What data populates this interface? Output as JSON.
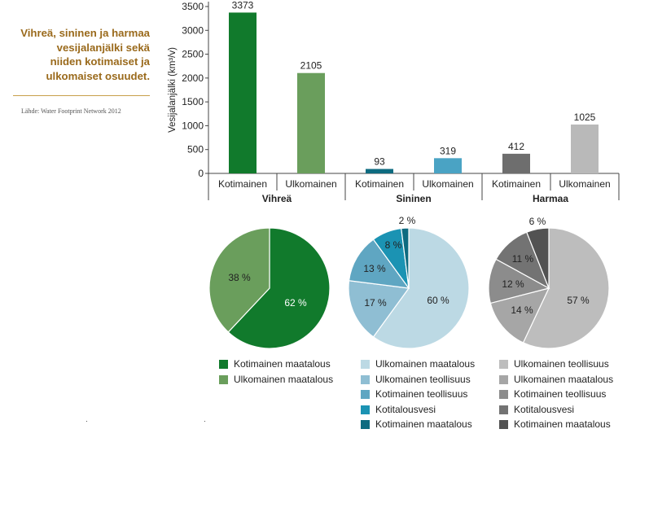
{
  "side_title": {
    "lines": [
      "Vihreä, sininen ja harmaa",
      "vesijalanjälki sekä",
      "niiden kotimaiset ja",
      "ulkomaiset osuudet."
    ]
  },
  "source": "Lähde: Water Footprint Network 2012",
  "chart_data": [
    {
      "type": "bar",
      "ylabel": "Vesijalanjälki (km³/v)",
      "ylim": [
        0,
        3500
      ],
      "yticks": [
        0,
        500,
        1000,
        1500,
        2000,
        2500,
        3000,
        3500
      ],
      "groups": [
        "Vihreä",
        "Sininen",
        "Harmaa"
      ],
      "categories": [
        "Kotimainen",
        "Ulkomainen",
        "Kotimainen",
        "Ulkomainen",
        "Kotimainen",
        "Ulkomainen"
      ],
      "values": [
        3373,
        2105,
        93,
        319,
        412,
        1025
      ],
      "colors": [
        "#117a2c",
        "#6a9e5c",
        "#0e6b80",
        "#4aa3c4",
        "#6e6e6e",
        "#b9b9b9"
      ]
    },
    {
      "type": "pie",
      "slices": [
        {
          "label": "62 %",
          "value": 62,
          "color": "#117a2c",
          "legend": "Kotimainen maatalous"
        },
        {
          "label": "38 %",
          "value": 38,
          "color": "#6a9e5c",
          "legend": "Ulkomainen maatalous"
        }
      ]
    },
    {
      "type": "pie",
      "slices": [
        {
          "label": "60 %",
          "value": 60,
          "color": "#bcd9e4",
          "legend": "Ulkomainen maatalous"
        },
        {
          "label": "17 %",
          "value": 17,
          "color": "#8fbed3",
          "legend": "Ulkomainen teollisuus"
        },
        {
          "label": "13 %",
          "value": 13,
          "color": "#5fa6c2",
          "legend": "Kotimainen teollisuus"
        },
        {
          "label": "8 %",
          "value": 8,
          "color": "#1b93b3",
          "legend": "Kotitalousvesi"
        },
        {
          "label": "2 %",
          "value": 2,
          "color": "#0e6b80",
          "legend": "Kotimainen maatalous"
        }
      ]
    },
    {
      "type": "pie",
      "slices": [
        {
          "label": "57 %",
          "value": 57,
          "color": "#bdbdbd",
          "legend": "Ulkomainen teollisuus"
        },
        {
          "label": "14 %",
          "value": 14,
          "color": "#a6a6a6",
          "legend": "Ulkomainen maatalous"
        },
        {
          "label": "12 %",
          "value": 12,
          "color": "#8c8c8c",
          "legend": "Kotimainen teollisuus"
        },
        {
          "label": "11 %",
          "value": 11,
          "color": "#737373",
          "legend": "Kotitalousvesi"
        },
        {
          "label": "6 %",
          "value": 6,
          "color": "#525252",
          "legend": "Kotimainen maatalous"
        }
      ]
    }
  ]
}
